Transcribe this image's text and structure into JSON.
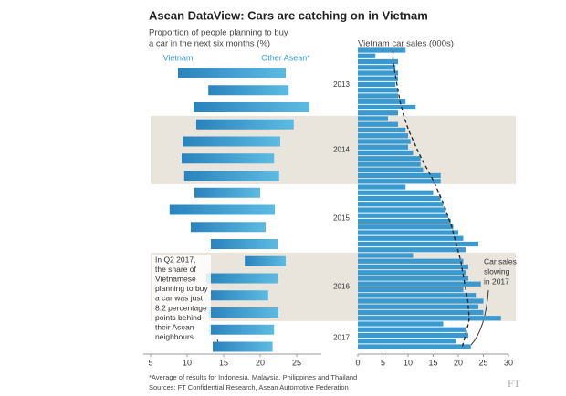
{
  "title": "Asean DataView: Cars are catching on in Vietnam",
  "footnote": "*Average of results for Indonesia, Malaysia, Philippines and Thailand",
  "source": "Sources: FT Confidential Research, Asean Automotive Federation",
  "brand": "FT",
  "chart_data": [
    {
      "type": "range_bar",
      "subtitle": [
        "Proportion of people planning to buy",
        "a car in the next six months (%)"
      ],
      "categories": [
        null,
        null,
        null,
        null,
        null,
        null,
        null,
        null,
        null,
        null,
        null,
        null,
        null,
        null,
        null,
        null,
        null
      ],
      "series": [
        {
          "name": "Vietnam",
          "color": "#3a9ad0",
          "values": [
            8.75,
            12.9,
            10.9,
            11.25,
            9.4,
            9.25,
            9.6,
            11,
            7.6,
            10.5,
            13.25,
            17.9,
            12.6,
            13.25,
            12.9,
            13,
            13.5
          ]
        },
        {
          "name": "Other Asean*",
          "color": "#3a9ad0",
          "values": [
            23.5,
            23.9,
            26.75,
            24.6,
            22.75,
            21.9,
            22.6,
            20,
            22,
            20.75,
            22.4,
            23.5,
            22.4,
            21.1,
            22.5,
            21.9,
            21.7
          ]
        }
      ],
      "year_labels": [
        "2013",
        "2014",
        "2015",
        "2016",
        "2017"
      ],
      "shaded": [
        false,
        true,
        false,
        true,
        false
      ],
      "xlim": [
        4,
        29
      ],
      "xticks": [
        5,
        10,
        15,
        20,
        25
      ],
      "annotation": [
        "In Q2 2017,",
        "the share of",
        "Vietnamese",
        "planning to buy",
        "a car was just",
        "8.2 percentage",
        "points behind",
        "their Asean",
        "neighbours"
      ]
    },
    {
      "type": "hbar",
      "subtitle": "Vietnam car sales (000s)",
      "series": [
        {
          "color": "#3a9ad0",
          "values": [
            9.5,
            3.5,
            8,
            7.5,
            8,
            8,
            7.5,
            8,
            8,
            9.5,
            11.5,
            8,
            6,
            8,
            9.5,
            10,
            10.5,
            10,
            11,
            12.5,
            12.5,
            13,
            16.5,
            16.5,
            9.5,
            15,
            16.5,
            17,
            17.5,
            18,
            18.5,
            19,
            20,
            21,
            24,
            21.5,
            11,
            21,
            22,
            21.5,
            22,
            24.5,
            21,
            23.5,
            25,
            24,
            25,
            28.5,
            17,
            21.5,
            22,
            19.5,
            22.5
          ]
        },
        {
          "color": "#222222",
          "style": "dashed",
          "values": [
            7,
            7,
            7,
            7.2,
            7.4,
            7.6,
            7.8,
            8,
            8.2,
            8.4,
            8.7,
            9,
            9.3,
            9.7,
            10.1,
            10.6,
            11.1,
            11.6,
            12.1,
            12.7,
            13.3,
            13.9,
            14.5,
            15.1,
            15.6,
            16.1,
            16.6,
            17.1,
            17.5,
            17.9,
            18.3,
            18.7,
            19,
            19.3,
            19.6,
            19.9,
            20.2,
            20.5,
            20.7,
            20.9,
            21.1,
            21.3,
            21.5,
            21.7,
            21.9,
            22,
            22.1,
            22.2,
            22,
            21.7,
            21.4,
            21.1,
            20.8
          ]
        }
      ],
      "xlim": [
        0,
        30
      ],
      "xticks": [
        0,
        5,
        10,
        15,
        20,
        25,
        30
      ],
      "annotation": [
        "Car sales",
        "slowing",
        "in 2017"
      ]
    }
  ]
}
